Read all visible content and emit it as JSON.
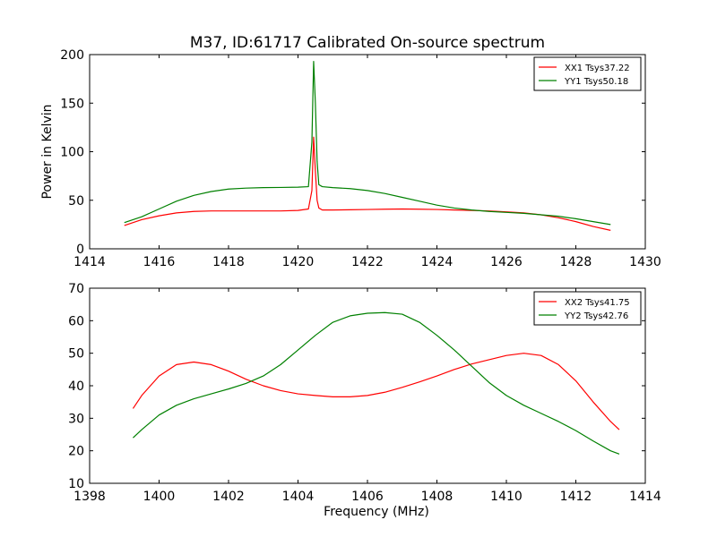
{
  "figure": {
    "title": "M37, ID:61717 Calibrated On-source spectrum"
  },
  "chart_data": [
    {
      "type": "line",
      "title": "M37, ID:61717 Calibrated On-source spectrum",
      "xlabel": "",
      "ylabel": "Power in Kelvin",
      "xlim": [
        1414,
        1430
      ],
      "ylim": [
        0,
        200
      ],
      "xticks": [
        1414,
        1416,
        1418,
        1420,
        1422,
        1424,
        1426,
        1428,
        1430
      ],
      "yticks": [
        0,
        50,
        100,
        150,
        200
      ],
      "grid": false,
      "legend_position": "top-right",
      "series": [
        {
          "name": "XX1 Tsys37.22",
          "color": "#ff0000",
          "x": [
            1415.0,
            1415.5,
            1416.0,
            1416.5,
            1417.0,
            1417.5,
            1418.0,
            1418.5,
            1419.0,
            1419.5,
            1420.0,
            1420.3,
            1420.4,
            1420.45,
            1420.5,
            1420.55,
            1420.6,
            1420.7,
            1421.0,
            1421.5,
            1422.0,
            1422.5,
            1423.0,
            1423.5,
            1424.0,
            1424.5,
            1425.0,
            1425.5,
            1426.0,
            1426.5,
            1427.0,
            1427.5,
            1428.0,
            1428.5,
            1429.0
          ],
          "y": [
            24,
            30,
            34,
            37,
            38.5,
            39,
            39,
            39,
            39,
            39,
            39.5,
            41,
            60,
            115,
            80,
            50,
            42,
            40,
            40,
            40.2,
            40.5,
            40.8,
            41,
            40.8,
            40.5,
            40,
            39.5,
            39,
            38,
            37,
            35,
            32,
            28,
            23,
            19
          ]
        },
        {
          "name": "YY1 Tsys50.18",
          "color": "#008000",
          "x": [
            1415.0,
            1415.5,
            1416.0,
            1416.5,
            1417.0,
            1417.5,
            1418.0,
            1418.5,
            1419.0,
            1419.5,
            1420.0,
            1420.3,
            1420.4,
            1420.45,
            1420.5,
            1420.55,
            1420.6,
            1420.7,
            1421.0,
            1421.5,
            1422.0,
            1422.5,
            1423.0,
            1423.5,
            1424.0,
            1424.5,
            1425.0,
            1425.5,
            1426.0,
            1426.5,
            1427.0,
            1427.5,
            1428.0,
            1428.5,
            1429.0
          ],
          "y": [
            27,
            33,
            41,
            49,
            55,
            59,
            61.5,
            62.5,
            63,
            63.2,
            63.5,
            64,
            110,
            193,
            150,
            90,
            66,
            64,
            63,
            62,
            60,
            57,
            53,
            49,
            45,
            42,
            40,
            38.5,
            37.5,
            36.5,
            35,
            33.5,
            31,
            28,
            25
          ]
        }
      ]
    },
    {
      "type": "line",
      "title": "",
      "xlabel": "Frequency (MHz)",
      "ylabel": "",
      "xlim": [
        1398,
        1414
      ],
      "ylim": [
        10,
        70
      ],
      "xticks": [
        1398,
        1400,
        1402,
        1404,
        1406,
        1408,
        1410,
        1412,
        1414
      ],
      "yticks": [
        10,
        20,
        30,
        40,
        50,
        60,
        70
      ],
      "grid": false,
      "legend_position": "top-right",
      "series": [
        {
          "name": "XX2 Tsys41.75",
          "color": "#ff0000",
          "x": [
            1399.25,
            1399.5,
            1400.0,
            1400.5,
            1401.0,
            1401.5,
            1402.0,
            1402.5,
            1403.0,
            1403.5,
            1404.0,
            1404.5,
            1405.0,
            1405.5,
            1406.0,
            1406.5,
            1407.0,
            1407.5,
            1408.0,
            1408.5,
            1409.0,
            1409.5,
            1410.0,
            1410.5,
            1411.0,
            1411.5,
            1412.0,
            1412.5,
            1413.0,
            1413.25
          ],
          "y": [
            33,
            37,
            43,
            46.5,
            47.3,
            46.5,
            44.5,
            42,
            40,
            38.5,
            37.5,
            37,
            36.6,
            36.6,
            37,
            38,
            39.5,
            41.2,
            43,
            45,
            46.7,
            48,
            49.3,
            50,
            49.3,
            46.5,
            41.5,
            35,
            29,
            26.5
          ]
        },
        {
          "name": "YY2 Tsys42.76",
          "color": "#008000",
          "x": [
            1399.25,
            1399.5,
            1400.0,
            1400.5,
            1401.0,
            1401.5,
            1402.0,
            1402.5,
            1403.0,
            1403.5,
            1404.0,
            1404.5,
            1405.0,
            1405.5,
            1406.0,
            1406.5,
            1407.0,
            1407.5,
            1408.0,
            1408.5,
            1409.0,
            1409.5,
            1410.0,
            1410.5,
            1411.0,
            1411.5,
            1412.0,
            1412.5,
            1413.0,
            1413.25
          ],
          "y": [
            24,
            26.5,
            31,
            34,
            36,
            37.5,
            39,
            40.7,
            43,
            46.5,
            51,
            55.5,
            59.5,
            61.5,
            62.3,
            62.5,
            62,
            59.5,
            55.5,
            51,
            46,
            41,
            37,
            34,
            31.5,
            29,
            26.2,
            23,
            20,
            19
          ]
        }
      ]
    }
  ]
}
